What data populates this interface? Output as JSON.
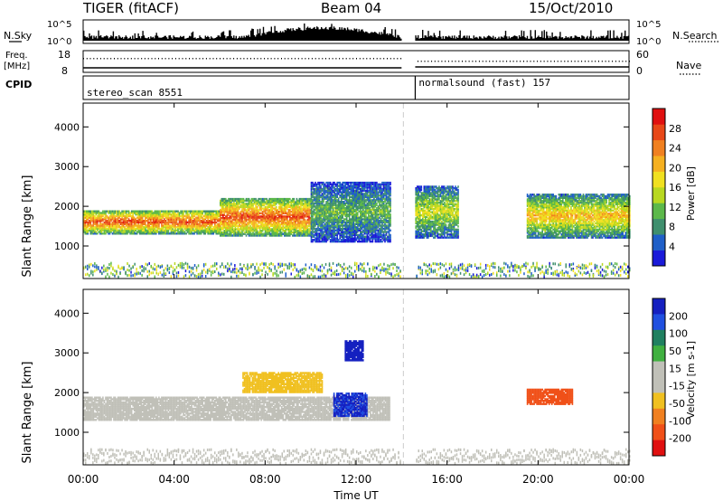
{
  "header": {
    "station": "TIGER (fitACF)",
    "beam": "Beam 04",
    "date": "15/Oct/2010",
    "n_sky_label": "N.Sky",
    "n_search_label": "N.Search",
    "freq_label": "Freq.",
    "freq_unit": "[MHz]",
    "nave_label": "Nave",
    "cpid_label": "CPID",
    "sky_ticks": [
      "10^5",
      "10^0"
    ],
    "search_ticks": [
      "10^5",
      "10^0"
    ],
    "freq_ticks": [
      "18",
      "8"
    ],
    "nave_ticks": [
      "60",
      "0"
    ]
  },
  "cpid": [
    {
      "name": "stereo_scan 8551",
      "start_hour": 0,
      "end_hour": 14.0
    },
    {
      "name": "normalsound (fast) 157",
      "start_hour": 14.6,
      "end_hour": 24
    }
  ],
  "axes": {
    "x_label": "Time UT",
    "x_ticks": [
      "00:00",
      "04:00",
      "08:00",
      "12:00",
      "16:00",
      "20:00",
      "00:00"
    ],
    "x_range_hours": [
      0,
      24
    ],
    "y_label": "Slant Range [km]",
    "y_ticks": [
      "1000",
      "2000",
      "3000",
      "4000"
    ],
    "y_range_km": [
      180,
      4600
    ]
  },
  "colorbars": {
    "power": {
      "label": "Power [dB]",
      "ticks": [
        "4",
        "8",
        "12",
        "16",
        "20",
        "24",
        "28"
      ],
      "colors": [
        "#1a1ad9",
        "#1f5fc8",
        "#3f8f6e",
        "#5cb84a",
        "#b8d820",
        "#f0e020",
        "#f5b020",
        "#f08020",
        "#e84818",
        "#e01010"
      ]
    },
    "velocity": {
      "label": "Velocity [m s-1]",
      "ticks": [
        "200",
        "100",
        "50",
        "15",
        "-15",
        "-50",
        "-100",
        "-200"
      ],
      "colors": [
        "#1520c0",
        "#2050e0",
        "#208060",
        "#40b040",
        "#c0c0b8",
        "#c0c0b8",
        "#f0c020",
        "#f08020",
        "#f05018",
        "#e01010"
      ]
    }
  },
  "chart_data": {
    "type": "heatmap",
    "title": "TIGER (fitACF) Beam 04 15/Oct/2010",
    "xlabel": "Time UT",
    "ylabel": "Slant Range [km]",
    "x_range": [
      0,
      24
    ],
    "y_range": [
      180,
      4600
    ],
    "data_gap_hours": [
      14.0,
      14.6
    ],
    "panels": [
      {
        "name": "Power",
        "unit": "dB",
        "bands": [
          {
            "t0": 0,
            "t1": 6,
            "r0": 1300,
            "r1": 1900,
            "value": 26
          },
          {
            "t0": 6,
            "t1": 10,
            "r0": 1250,
            "r1": 2200,
            "value": 26
          },
          {
            "t0": 10,
            "t1": 13.5,
            "r0": 1100,
            "r1": 2600,
            "value": 12
          },
          {
            "t0": 14.6,
            "t1": 16.5,
            "r0": 1200,
            "r1": 2500,
            "value": 16
          },
          {
            "t0": 19.5,
            "t1": 24,
            "r0": 1200,
            "r1": 2300,
            "value": 20
          }
        ]
      },
      {
        "name": "Velocity",
        "unit": "m/s",
        "bands": [
          {
            "t0": 0,
            "t1": 13.5,
            "r0": 1300,
            "r1": 1900,
            "value": 0
          },
          {
            "t0": 7,
            "t1": 10.5,
            "r0": 2000,
            "r1": 2500,
            "value": -60
          },
          {
            "t0": 11,
            "t1": 12.5,
            "r0": 1400,
            "r1": 2000,
            "value": 180
          },
          {
            "t0": 11.5,
            "t1": 12.3,
            "r0": 2800,
            "r1": 3300,
            "value": 200
          },
          {
            "t0": 19.5,
            "t1": 21.5,
            "r0": 1700,
            "r1": 2100,
            "value": -150
          }
        ]
      }
    ]
  }
}
